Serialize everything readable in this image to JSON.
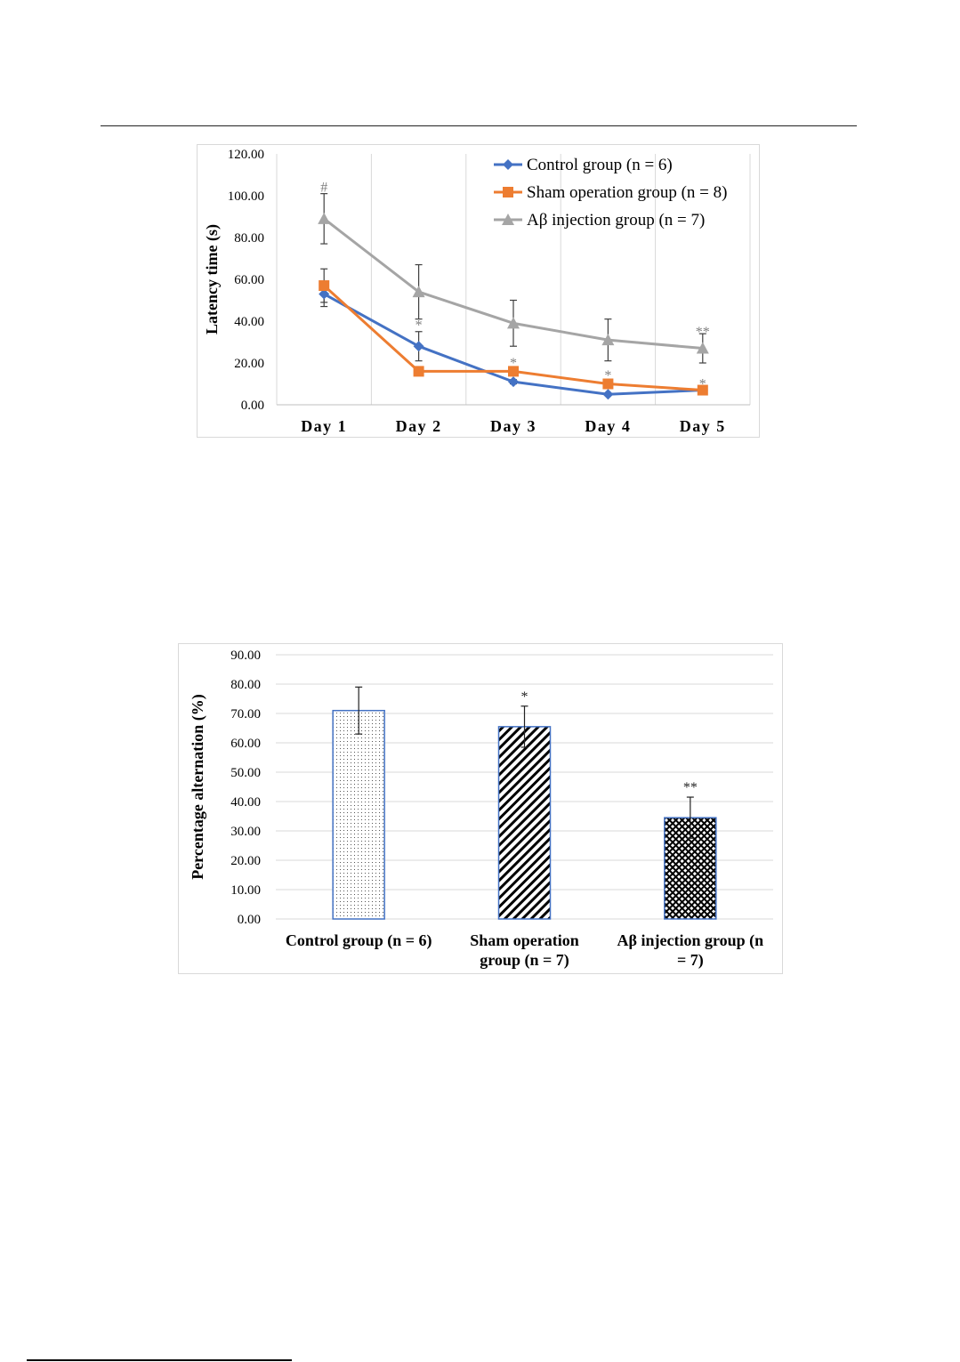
{
  "chart_data": [
    {
      "type": "line",
      "ylabel": "Latency time (s)",
      "xlabel": "",
      "categories": [
        "Day 1",
        "Day 2",
        "Day 3",
        "Day 4",
        "Day 5"
      ],
      "y_tick_labels": [
        "0.00",
        "20.00",
        "40.00",
        "60.00",
        "80.00",
        "100.00",
        "120.00"
      ],
      "ylim": [
        0,
        120
      ],
      "legend_position": "top-right",
      "series": [
        {
          "name": "Control group (n = 6)",
          "values": [
            53,
            28,
            11,
            5,
            7
          ],
          "errors": [
            6,
            7,
            1,
            0,
            0
          ],
          "color": "#4472c4",
          "marker": "diamond"
        },
        {
          "name": "Sham operation group (n = 8)",
          "values": [
            57,
            16,
            16,
            10,
            7
          ],
          "errors": [
            8,
            0,
            2,
            0,
            0
          ],
          "color": "#ed7d31",
          "marker": "square"
        },
        {
          "name": "Aβ injection group (n = 7)",
          "values": [
            89,
            54,
            39,
            31,
            27
          ],
          "errors": [
            12,
            13,
            11,
            10,
            7
          ],
          "color": "#a5a5a5",
          "marker": "triangle"
        }
      ],
      "annotations": [
        {
          "category": "Day 1",
          "text": "#",
          "y": 104
        },
        {
          "category": "Day 2",
          "text": "*",
          "y": 38
        },
        {
          "category": "Day 3",
          "text": "*",
          "y": 20
        },
        {
          "category": "Day 4",
          "text": "*",
          "y": 14
        },
        {
          "category": "Day 5",
          "text": "**",
          "y": 35
        },
        {
          "category": "Day 5",
          "text": "*",
          "y": 10
        }
      ]
    },
    {
      "type": "bar",
      "ylabel": "Percentage alternation (%)",
      "xlabel": "",
      "categories": [
        "Control group (n = 6)",
        "Sham operation group (n = 7)",
        "Aβ injection group (n = 7)"
      ],
      "category_lines": [
        [
          "Control group (n = 6)"
        ],
        [
          "Sham operation",
          "group (n = 7)"
        ],
        [
          "Aβ injection group (n",
          "= 7)"
        ]
      ],
      "values": [
        71,
        65.5,
        34.5
      ],
      "errors": [
        8,
        7,
        7
      ],
      "y_tick_labels": [
        "0.00",
        "10.00",
        "20.00",
        "30.00",
        "40.00",
        "50.00",
        "60.00",
        "70.00",
        "80.00",
        "90.00"
      ],
      "ylim": [
        0,
        90
      ],
      "bar_fills": [
        "dots",
        "diagonal",
        "crosshatch"
      ],
      "bar_border_color": "#4472c4",
      "annotations": [
        {
          "category": "Sham operation group (n = 7)",
          "text": "*"
        },
        {
          "category": "Aβ injection group (n = 7)",
          "text": "**"
        }
      ]
    }
  ]
}
